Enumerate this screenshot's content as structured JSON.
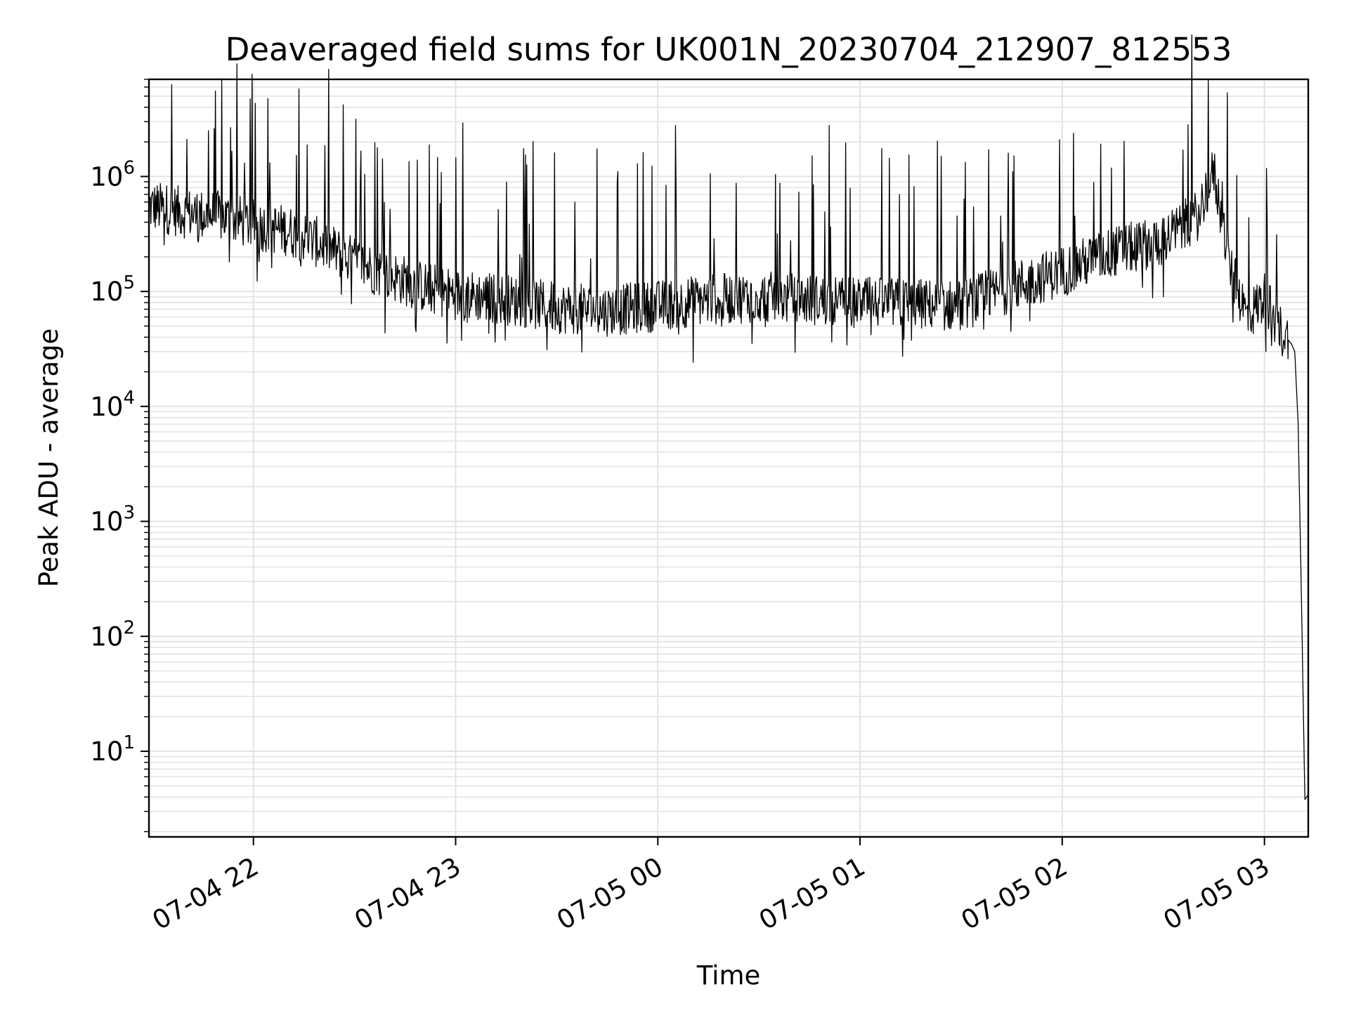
{
  "chart_data": {
    "type": "line",
    "title": "Deaveraged field sums for UK001N_20230704_212907_812553",
    "xlabel": "Time",
    "ylabel": "Peak ADU - average",
    "yscale": "log",
    "grid": "on (major and minor, light gray)",
    "xlim": [
      "2023-07-04 21:29",
      "2023-07-05 03:13"
    ],
    "ylim": [
      1.8,
      7000000
    ],
    "x_ticks": [
      "07-04 22",
      "07-04 23",
      "07-05 00",
      "07-05 01",
      "07-05 02",
      "07-05 03"
    ],
    "y_ticks": [
      {
        "base": "10",
        "exp": "1",
        "value": 10
      },
      {
        "base": "10",
        "exp": "2",
        "value": 100
      },
      {
        "base": "10",
        "exp": "3",
        "value": 1000
      },
      {
        "base": "10",
        "exp": "4",
        "value": 10000
      },
      {
        "base": "10",
        "exp": "5",
        "value": 100000
      },
      {
        "base": "10",
        "exp": "6",
        "value": 1000000
      }
    ],
    "line_color": "#000000",
    "series": [
      {
        "x": [
          "2023-07-04 21:29",
          "2023-07-04 21:35",
          "2023-07-04 21:40",
          "2023-07-04 21:45",
          "2023-07-04 21:50",
          "2023-07-04 21:55",
          "2023-07-04 22:00",
          "2023-07-04 22:10",
          "2023-07-04 22:20",
          "2023-07-04 22:30",
          "2023-07-04 22:40",
          "2023-07-04 22:50",
          "2023-07-04 23:00",
          "2023-07-04 23:15",
          "2023-07-04 23:30",
          "2023-07-04 23:45",
          "2023-07-05 00:00",
          "2023-07-05 00:15",
          "2023-07-05 00:30",
          "2023-07-05 00:45",
          "2023-07-05 01:00",
          "2023-07-05 01:15",
          "2023-07-05 01:30",
          "2023-07-05 01:45",
          "2023-07-05 02:00",
          "2023-07-05 02:15",
          "2023-07-05 02:30",
          "2023-07-05 02:40",
          "2023-07-05 02:45",
          "2023-07-05 02:50",
          "2023-07-05 02:55",
          "2023-07-05 03:00",
          "2023-07-05 03:05",
          "2023-07-05 03:08",
          "2023-07-05 03:09",
          "2023-07-05 03:10",
          "2023-07-05 03:11",
          "2023-07-05 03:12",
          "2023-07-05 03:13"
        ],
        "y": [
          550000,
          520000,
          480000,
          460000,
          450000,
          420000,
          380000,
          340000,
          260000,
          180000,
          140000,
          110000,
          95000,
          85000,
          72000,
          68000,
          75000,
          85000,
          90000,
          85000,
          80000,
          78000,
          75000,
          110000,
          150000,
          220000,
          280000,
          450000,
          1100000,
          150000,
          60000,
          90000,
          45000,
          35000,
          30000,
          7000,
          200,
          3.8,
          4.2
        ]
      }
    ]
  }
}
